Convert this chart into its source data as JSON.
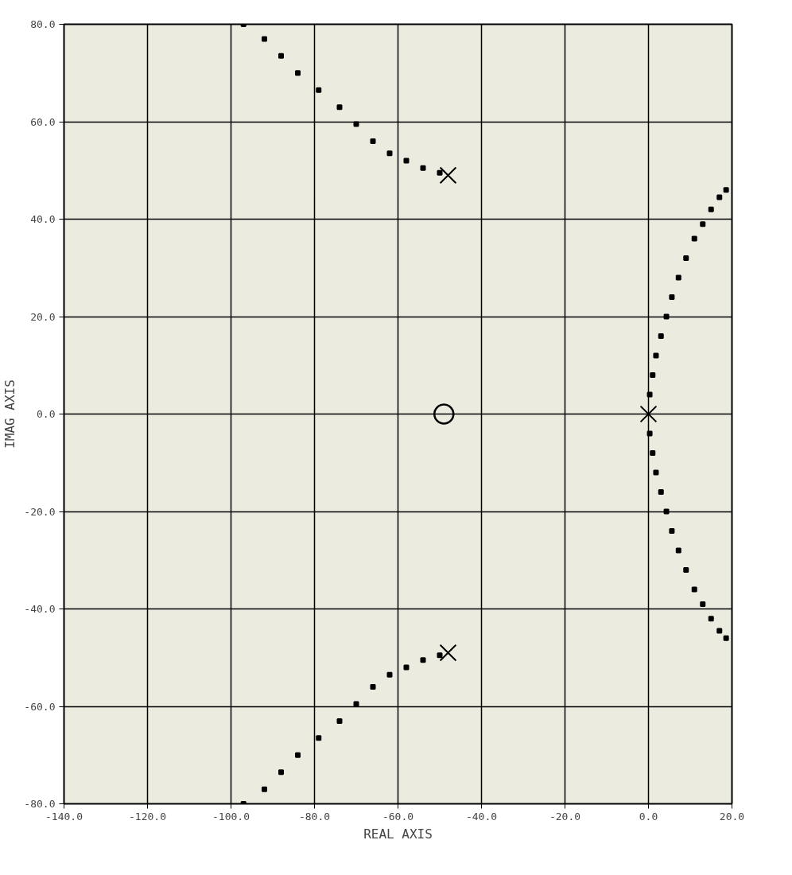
{
  "chart_data": {
    "type": "scatter",
    "xlabel": "REAL AXIS",
    "ylabel": "IMAG AXIS",
    "xlim": [
      -140,
      20
    ],
    "ylim": [
      -80,
      80
    ],
    "xticks": [
      {
        "value": -140,
        "label": "-140.0"
      },
      {
        "value": -120,
        "label": "-120.0"
      },
      {
        "value": -100,
        "label": "-100.0"
      },
      {
        "value": -80,
        "label": "-80.0"
      },
      {
        "value": -60,
        "label": "-60.0"
      },
      {
        "value": -40,
        "label": "-40.0"
      },
      {
        "value": -20,
        "label": "-20.0"
      },
      {
        "value": 0,
        "label": "0.0"
      },
      {
        "value": 20,
        "label": "20.0"
      }
    ],
    "yticks": [
      {
        "value": -80,
        "label": "-80.0"
      },
      {
        "value": -60,
        "label": "-60.0"
      },
      {
        "value": -40,
        "label": "-40.0"
      },
      {
        "value": -20,
        "label": "-20.0"
      },
      {
        "value": 0,
        "label": "0.0"
      },
      {
        "value": 20,
        "label": "20.0"
      },
      {
        "value": 40,
        "label": "40.0"
      },
      {
        "value": 60,
        "label": "60.0"
      },
      {
        "value": 80,
        "label": "80.0"
      }
    ],
    "grid": true,
    "marker": "square",
    "series": [
      {
        "color": "#000000",
        "x": [
          -50,
          -54,
          -58,
          -62,
          -66,
          -70,
          -74,
          -79,
          -84,
          -88,
          -92,
          -97
        ],
        "values": [
          49.5,
          50.5,
          52,
          53.5,
          56,
          59.5,
          63,
          66.5,
          70,
          73.5,
          77,
          80
        ]
      },
      {
        "color": "#000000",
        "x": [
          -50,
          -54,
          -58,
          -62,
          -66,
          -70,
          -74,
          -79,
          -84,
          -88,
          -92,
          -97
        ],
        "values": [
          -49.5,
          -50.5,
          -52,
          -53.5,
          -56,
          -59.5,
          -63,
          -66.5,
          -70,
          -73.5,
          -77,
          -80
        ]
      },
      {
        "color": "#000000",
        "x": [
          0.3,
          1,
          1.8,
          3,
          4.3,
          5.6,
          7.2,
          9,
          11,
          13,
          15,
          17,
          18.6
        ],
        "values": [
          4,
          8,
          12,
          16,
          20,
          24,
          28,
          32,
          36,
          39,
          42,
          44.5,
          46
        ]
      },
      {
        "color": "#000000",
        "x": [
          0.3,
          1,
          1.8,
          3,
          4.3,
          5.6,
          7.2,
          9,
          11,
          13,
          15,
          17,
          18.6
        ],
        "values": [
          -4,
          -8,
          -12,
          -16,
          -20,
          -24,
          -28,
          -32,
          -36,
          -39,
          -42,
          -44.5,
          -46
        ]
      },
      {
        "color": "#000000",
        "marker": "cross",
        "x": [
          -48,
          -48,
          0
        ],
        "values": [
          49,
          -49,
          0
        ]
      },
      {
        "color": "#000000",
        "marker": "circle",
        "x": [
          -49
        ],
        "values": [
          0
        ]
      }
    ]
  }
}
